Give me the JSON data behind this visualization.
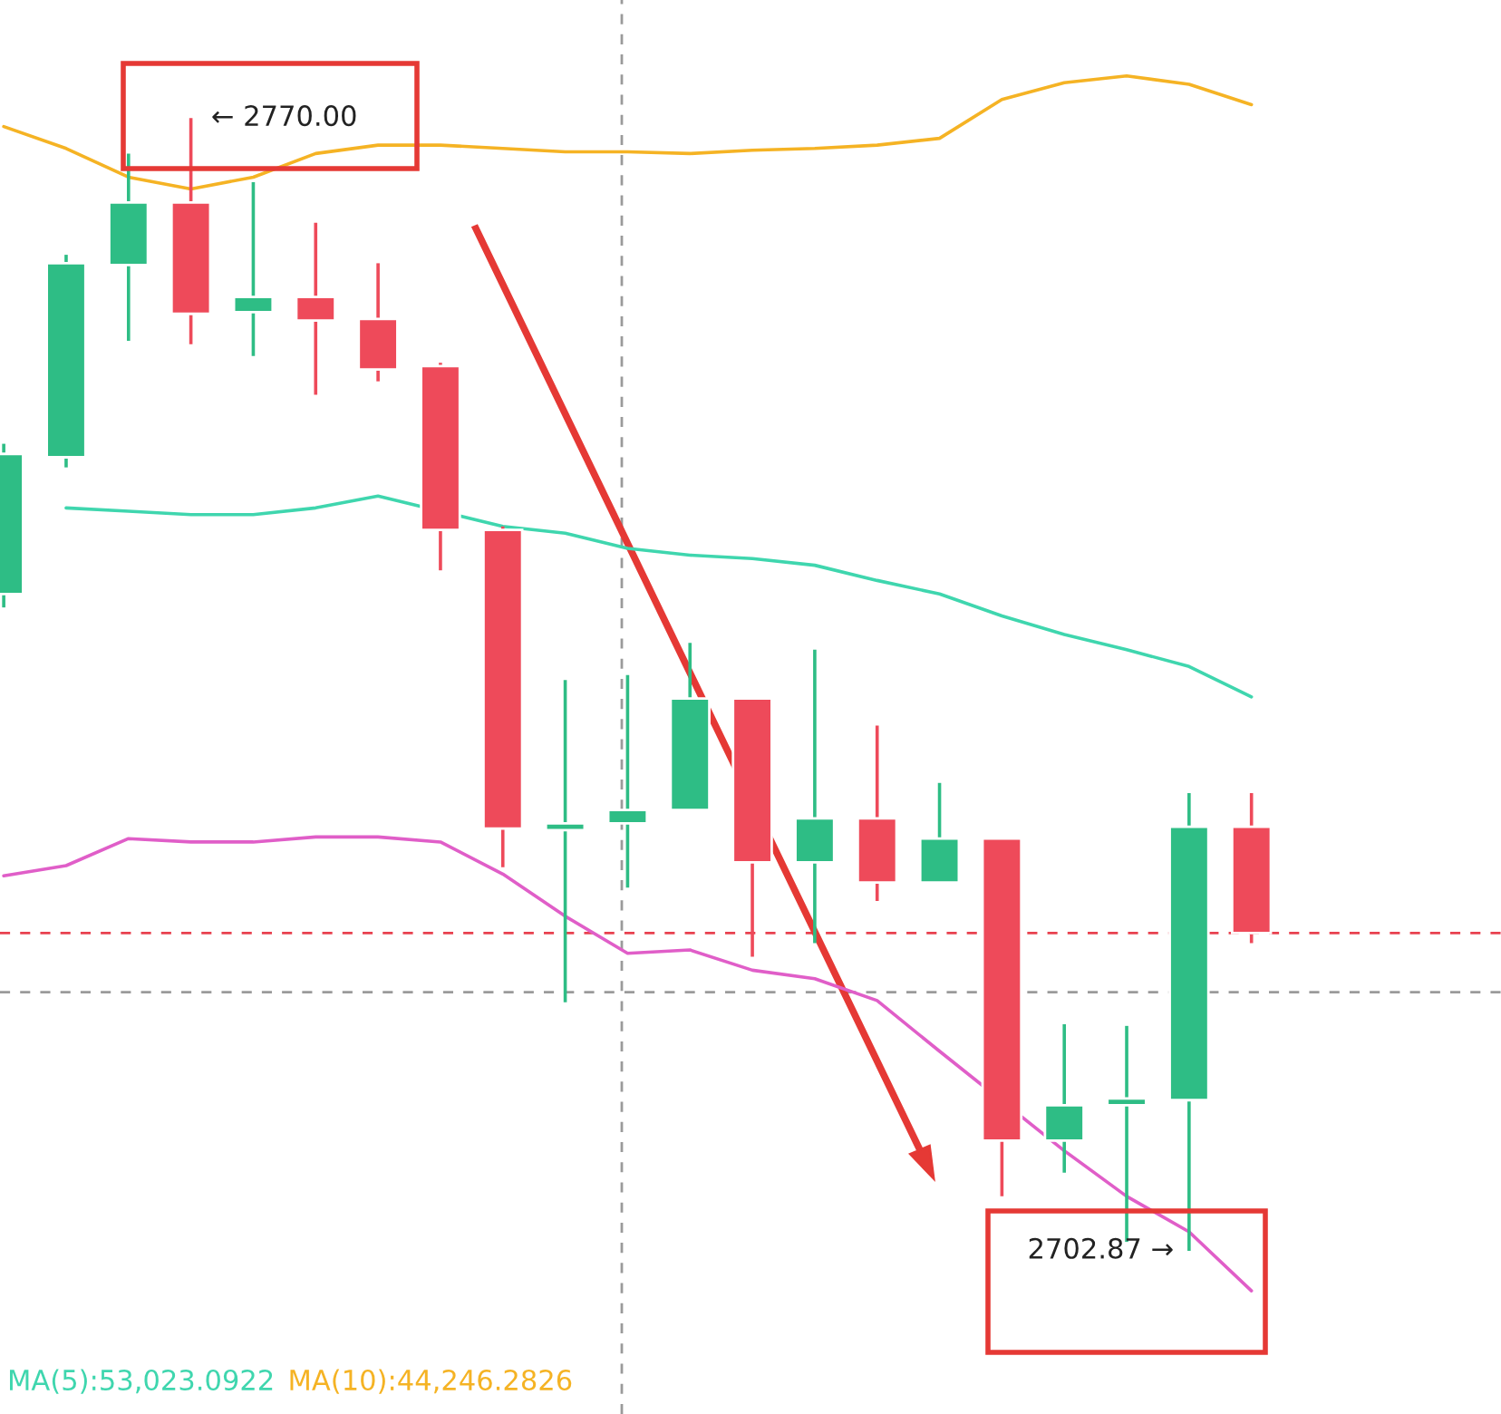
{
  "chart_data": {
    "type": "candlestick",
    "categories": [
      null,
      null,
      null,
      null,
      null,
      null,
      null,
      null,
      null,
      null,
      null,
      null,
      null,
      null,
      null,
      null,
      null,
      null,
      null,
      null,
      null
    ],
    "ohlc": [
      [
        2741.8,
        2750.7,
        2741.0,
        2750.1
      ],
      [
        2749.9,
        2761.9,
        2749.3,
        2761.4
      ],
      [
        2761.3,
        2767.9,
        2756.8,
        2765.0
      ],
      [
        2765.0,
        2770.0,
        2756.6,
        2758.4
      ],
      [
        2758.5,
        2766.2,
        2755.9,
        2759.4
      ],
      [
        2759.4,
        2763.8,
        2753.6,
        2758.0
      ],
      [
        2758.1,
        2761.4,
        2754.4,
        2755.1
      ],
      [
        2755.3,
        2755.5,
        2743.2,
        2745.6
      ],
      [
        2745.6,
        2745.8,
        2725.6,
        2727.9
      ],
      [
        2727.8,
        2736.7,
        2717.6,
        2728.2
      ],
      [
        2728.2,
        2737.0,
        2724.4,
        2729.0
      ],
      [
        2729.0,
        2738.9,
        2729.0,
        2735.6
      ],
      [
        2735.6,
        2735.6,
        2720.3,
        2725.9
      ],
      [
        2725.9,
        2738.5,
        2721.1,
        2728.5
      ],
      [
        2728.5,
        2734.0,
        2723.6,
        2724.7
      ],
      [
        2724.7,
        2730.6,
        2724.7,
        2727.3
      ],
      [
        2727.3,
        2727.3,
        2706.1,
        2709.4
      ],
      [
        2709.4,
        2716.3,
        2707.5,
        2711.5
      ],
      [
        2711.5,
        2716.2,
        2703.4,
        2711.9
      ],
      [
        2711.8,
        2730.0,
        2702.87,
        2728.0
      ],
      [
        2728.0,
        2730.0,
        2721.1,
        2721.7
      ]
    ],
    "colors": [
      "#2ebd85",
      "#2ebd85",
      "#2ebd85",
      "#ee4a5a",
      "#2ebd85",
      "#ee4a5a",
      "#ee4a5a",
      "#ee4a5a",
      "#ee4a5a",
      "#2ebd85",
      "#2ebd85",
      "#2ebd85",
      "#ee4a5a",
      "#2ebd85",
      "#ee4a5a",
      "#2ebd85",
      "#ee4a5a",
      "#2ebd85",
      "#2ebd85",
      "#2ebd85",
      "#ee4a5a"
    ],
    "series": [
      {
        "type": "line",
        "color": "#f5b324",
        "values": [
          2769.5,
          2768.2,
          2766.5,
          2765.8,
          2766.5,
          2767.9,
          2768.4,
          2768.4,
          2768.2,
          2768.0,
          2768.0,
          2767.9,
          2768.1,
          2768.2,
          2768.4,
          2768.8,
          2771.1,
          2772.1,
          2772.5,
          2772.0,
          2770.8
        ]
      },
      {
        "type": "line",
        "color": "#3fd6ae",
        "values": [
          null,
          2746.9,
          2746.7,
          2746.5,
          2746.5,
          2746.9,
          2747.6,
          null,
          2745.8,
          2745.4,
          2744.5,
          2744.1,
          2743.9,
          2743.5,
          2742.6,
          2741.8,
          2740.5,
          2739.4,
          2738.5,
          2737.5,
          2735.7
        ]
      },
      {
        "type": "line",
        "color": "#e05ec8",
        "values": [
          2725.1,
          2725.7,
          2727.3,
          2727.1,
          2727.1,
          2727.4,
          2727.4,
          2727.1,
          2725.2,
          2722.7,
          2720.5,
          2720.7,
          2719.5,
          2719.0,
          2717.7,
          2714.7,
          null,
          2708.8,
          2706.1,
          2704.0,
          2700.5
        ]
      }
    ],
    "ref_lines": [
      {
        "axis": "y",
        "value": 2721.7,
        "color": "#e8414f",
        "line_style": "dashed"
      },
      {
        "axis": "y",
        "value": 2718.2,
        "color": "#9a9a9a",
        "line_style": "dashed"
      }
    ],
    "annotations": [
      "← 2770.00",
      "2702.87 →",
      "MA(5):53,023.0922",
      "MA(10):44,246.2826"
    ],
    "ylim": [
      2693.2,
      2777.0
    ],
    "tick_labels": false,
    "grid": false
  }
}
